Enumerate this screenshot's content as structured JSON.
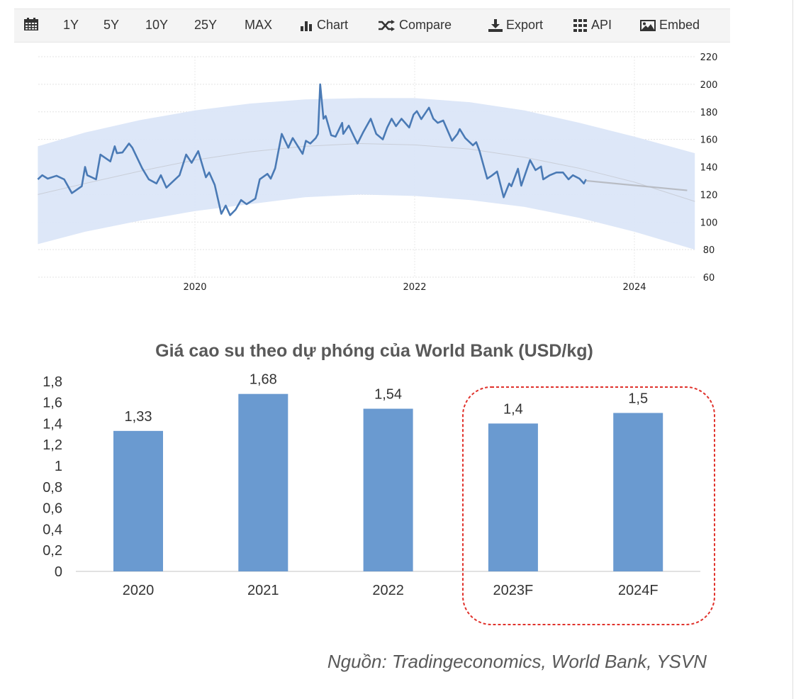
{
  "toolbar": {
    "calendar_icon": "calendar-icon",
    "ranges": [
      "1Y",
      "5Y",
      "10Y",
      "25Y",
      "MAX"
    ],
    "chart_label": "Chart",
    "compare_label": "Compare",
    "export_label": "Export",
    "api_label": "API",
    "embed_label": "Embed"
  },
  "chart_data": [
    {
      "type": "line",
      "title": "",
      "xlabel": "",
      "ylabel": "",
      "xlim": [
        2018.57,
        2024.55
      ],
      "ylim": [
        60,
        220
      ],
      "x_ticks": [
        "2020",
        "2022",
        "2024"
      ],
      "y_ticks": [
        "60",
        "80",
        "100",
        "120",
        "140",
        "160",
        "180",
        "200",
        "220"
      ],
      "y_axis_side": "right",
      "grid": true,
      "colors": {
        "line": "#4a7ab5",
        "band": "#dbe6f8",
        "forecast": "#b8bcc4",
        "trend": "#c9ced8"
      },
      "series": [
        {
          "kind": "actual",
          "points": [
            [
              2018.57,
              131
            ],
            [
              2018.61,
              134
            ],
            [
              2018.66,
              131.5
            ],
            [
              2018.74,
              133.6
            ],
            [
              2018.81,
              131
            ],
            [
              2018.88,
              121
            ],
            [
              2018.97,
              126
            ],
            [
              2019.0,
              140
            ],
            [
              2019.02,
              134
            ],
            [
              2019.1,
              131
            ],
            [
              2019.14,
              149
            ],
            [
              2019.23,
              144
            ],
            [
              2019.27,
              155
            ],
            [
              2019.29,
              150
            ],
            [
              2019.34,
              150.5
            ],
            [
              2019.4,
              157
            ],
            [
              2019.43,
              154
            ],
            [
              2019.52,
              139
            ],
            [
              2019.58,
              131
            ],
            [
              2019.65,
              128
            ],
            [
              2019.69,
              134
            ],
            [
              2019.74,
              125
            ],
            [
              2019.86,
              134
            ],
            [
              2019.92,
              149
            ],
            [
              2019.97,
              143
            ],
            [
              2020.03,
              151.5
            ],
            [
              2020.1,
              132.5
            ],
            [
              2020.13,
              136
            ],
            [
              2020.18,
              127
            ],
            [
              2020.24,
              106
            ],
            [
              2020.28,
              112
            ],
            [
              2020.32,
              105
            ],
            [
              2020.37,
              109
            ],
            [
              2020.42,
              116
            ],
            [
              2020.47,
              113
            ],
            [
              2020.55,
              117
            ],
            [
              2020.59,
              131
            ],
            [
              2020.66,
              135
            ],
            [
              2020.69,
              131.5
            ],
            [
              2020.73,
              139
            ],
            [
              2020.79,
              164
            ],
            [
              2020.85,
              154
            ],
            [
              2020.89,
              161
            ],
            [
              2020.98,
              149.5
            ],
            [
              2021.01,
              159
            ],
            [
              2021.05,
              157
            ],
            [
              2021.1,
              161
            ],
            [
              2021.12,
              164
            ],
            [
              2021.14,
              200
            ],
            [
              2021.17,
              175
            ],
            [
              2021.19,
              177
            ],
            [
              2021.24,
              163
            ],
            [
              2021.28,
              162
            ],
            [
              2021.34,
              172
            ],
            [
              2021.35,
              164
            ],
            [
              2021.4,
              170
            ],
            [
              2021.46,
              160
            ],
            [
              2021.48,
              157
            ],
            [
              2021.53,
              165
            ],
            [
              2021.6,
              175
            ],
            [
              2021.65,
              164
            ],
            [
              2021.71,
              160
            ],
            [
              2021.75,
              168.6
            ],
            [
              2021.79,
              175
            ],
            [
              2021.83,
              169.6
            ],
            [
              2021.88,
              175
            ],
            [
              2021.95,
              168.6
            ],
            [
              2021.99,
              178
            ],
            [
              2022.02,
              180.5
            ],
            [
              2022.06,
              174.7
            ],
            [
              2022.13,
              183
            ],
            [
              2022.17,
              175
            ],
            [
              2022.21,
              172
            ],
            [
              2022.26,
              173.7
            ],
            [
              2022.34,
              159
            ],
            [
              2022.39,
              164
            ],
            [
              2022.41,
              167.5
            ],
            [
              2022.46,
              161
            ],
            [
              2022.53,
              155.7
            ],
            [
              2022.56,
              158
            ],
            [
              2022.59,
              151.6
            ],
            [
              2022.66,
              131.5
            ],
            [
              2022.7,
              133.6
            ],
            [
              2022.75,
              136.7
            ],
            [
              2022.81,
              118
            ],
            [
              2022.86,
              128
            ],
            [
              2022.88,
              126
            ],
            [
              2022.94,
              138.7
            ],
            [
              2022.97,
              126.4
            ],
            [
              2023.05,
              145
            ],
            [
              2023.1,
              137.7
            ],
            [
              2023.15,
              140.3
            ],
            [
              2023.17,
              131
            ],
            [
              2023.23,
              134
            ],
            [
              2023.29,
              136
            ],
            [
              2023.35,
              136
            ],
            [
              2023.4,
              131
            ],
            [
              2023.44,
              134
            ],
            [
              2023.5,
              131.5
            ],
            [
              2023.54,
              128
            ],
            [
              2023.56,
              131
            ]
          ]
        },
        {
          "kind": "forecast",
          "points": [
            [
              2023.56,
              130
            ],
            [
              2024.48,
              123
            ]
          ]
        }
      ],
      "band": {
        "upper": [
          [
            2018.57,
            155
          ],
          [
            2019.0,
            165
          ],
          [
            2019.5,
            174
          ],
          [
            2020.0,
            181
          ],
          [
            2020.5,
            186
          ],
          [
            2021.0,
            189
          ],
          [
            2021.5,
            190
          ],
          [
            2022.0,
            190
          ],
          [
            2022.5,
            187
          ],
          [
            2023.0,
            181
          ],
          [
            2023.5,
            172
          ],
          [
            2024.0,
            162
          ],
          [
            2024.55,
            150
          ]
        ],
        "lower": [
          [
            2018.57,
            84
          ],
          [
            2019.0,
            93
          ],
          [
            2019.5,
            101
          ],
          [
            2020.0,
            108
          ],
          [
            2020.5,
            113
          ],
          [
            2021.0,
            118
          ],
          [
            2021.5,
            120
          ],
          [
            2022.0,
            119
          ],
          [
            2022.5,
            116
          ],
          [
            2023.0,
            111
          ],
          [
            2023.5,
            103
          ],
          [
            2024.0,
            93
          ],
          [
            2024.55,
            80
          ]
        ]
      },
      "trend": [
        [
          2018.57,
          120
        ],
        [
          2019.0,
          128
        ],
        [
          2019.5,
          137
        ],
        [
          2020.0,
          145
        ],
        [
          2020.5,
          151
        ],
        [
          2021.0,
          155
        ],
        [
          2021.5,
          157
        ],
        [
          2022.0,
          156
        ],
        [
          2022.5,
          153
        ],
        [
          2023.0,
          147
        ],
        [
          2023.5,
          139
        ],
        [
          2024.0,
          129
        ],
        [
          2024.55,
          115
        ]
      ]
    },
    {
      "type": "bar",
      "title": "Giá cao su theo dự phóng của World Bank (USD/kg)",
      "xlabel": "",
      "ylabel": "",
      "categories": [
        "2020",
        "2021",
        "2022",
        "2023F",
        "2024F"
      ],
      "values": [
        1.33,
        1.68,
        1.54,
        1.4,
        1.5
      ],
      "data_labels": [
        "1,33",
        "1,68",
        "1,54",
        "1,4",
        "1,5"
      ],
      "ylim": [
        0,
        1.8
      ],
      "y_ticks": [
        "0",
        "0,2",
        "0,4",
        "0,6",
        "0,8",
        "1",
        "1,2",
        "1,4",
        "1,6",
        "1,8"
      ],
      "grid": false,
      "colors": {
        "bar": "#6a9ad0",
        "highlight": "#e0312b"
      },
      "highlighted_categories": [
        "2023F",
        "2024F"
      ]
    }
  ],
  "source": "Nguồn: Tradingeconomics, World Bank, YSVN"
}
